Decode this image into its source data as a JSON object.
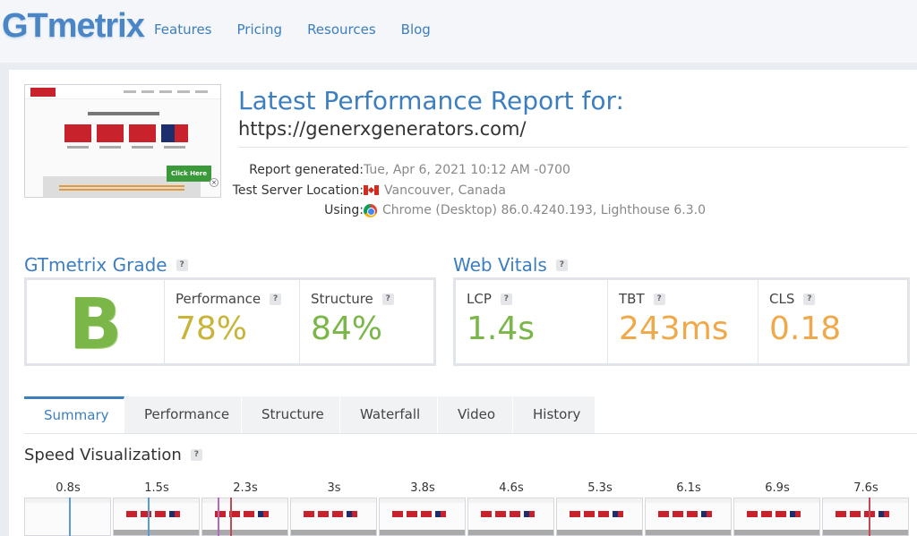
{
  "header": {
    "logo": "GTmetrix",
    "nav": [
      "Features",
      "Pricing",
      "Resources",
      "Blog"
    ]
  },
  "report": {
    "title": "Latest Performance Report for:",
    "url": "https://generxgenerators.com/",
    "generated_label": "Report generated:",
    "generated_value": "Tue, Apr 6, 2021 10:12 AM -0700",
    "location_label": "Test Server Location:",
    "location_value": "Vancouver, Canada",
    "using_label": "Using:",
    "using_value": "Chrome (Desktop) 86.0.4240.193, Lighthouse 6.3.0",
    "thumb_click_here": "Click Here"
  },
  "grade": {
    "heading": "GTmetrix Grade",
    "letter": "B",
    "performance_label": "Performance",
    "performance_value": "78%",
    "structure_label": "Structure",
    "structure_value": "84%"
  },
  "vitals": {
    "heading": "Web Vitals",
    "lcp_label": "LCP",
    "lcp_value": "1.4s",
    "tbt_label": "TBT",
    "tbt_value": "243ms",
    "cls_label": "CLS",
    "cls_value": "0.18"
  },
  "colors": {
    "green": "#7ab648",
    "yellow": "#c9b43a",
    "orange": "#f0a94a",
    "blue": "#3d7ebf"
  },
  "tabs": [
    "Summary",
    "Performance",
    "Structure",
    "Waterfall",
    "Video",
    "History"
  ],
  "speed": {
    "heading": "Speed Visualization",
    "times": [
      "0.8s",
      "1.5s",
      "2.3s",
      "3s",
      "3.8s",
      "4.6s",
      "5.3s",
      "6.1s",
      "6.9s",
      "7.6s"
    ]
  },
  "help_mark": "?"
}
